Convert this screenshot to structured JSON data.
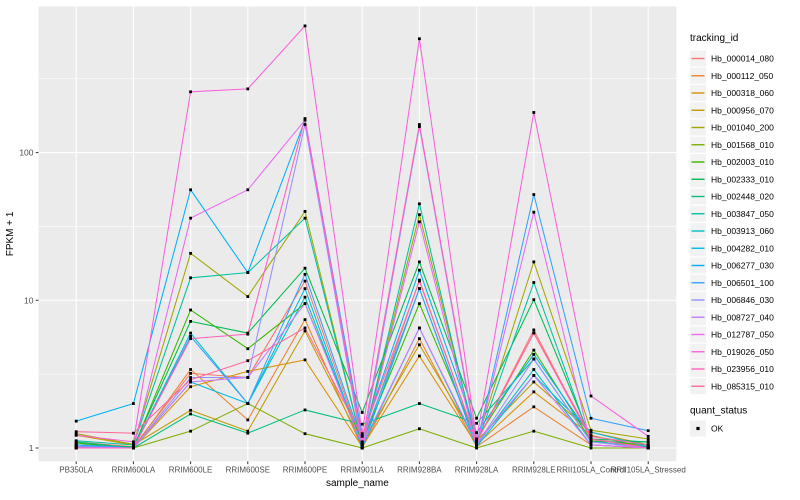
{
  "figure": {
    "background": "#ffffff",
    "panel_background": "#ebebeb",
    "grid_color": "#ffffff",
    "tick_label_color": "#4d4d4d",
    "axis_title_color": "#000000",
    "legend_key_fill": "#f2f2f2",
    "point_color": "#000000"
  },
  "chart_data": {
    "type": "line",
    "title": "",
    "xlabel": "sample_name",
    "ylabel": "FPKM + 1",
    "y_scale": "log10",
    "y_ticks": [
      1,
      10,
      100
    ],
    "y_minor": [
      3.162,
      31.62,
      316.2
    ],
    "ylim": [
      0.82,
      975
    ],
    "grid": true,
    "legend_position": "right",
    "legend_title": "tracking_id",
    "point_legend_title": "quant_status",
    "point_legend_label": "OK",
    "categories": [
      "PB350LA",
      "RRIM600LA",
      "RRIM600LE",
      "RRIM600SE",
      "RRIM600PE",
      "RRIM901LA",
      "RRIM928BA",
      "RRIM928LA",
      "RRIM928LE",
      "RRII105LA_Control",
      "RRII105LA_Stressed"
    ],
    "series": [
      {
        "name": "Hb_000014_080",
        "color": "#F8766D",
        "values": [
          1.1,
          1.02,
          3.2,
          3.0,
          13.5,
          1.05,
          13.7,
          1.1,
          6.3,
          1.15,
          1.02
        ]
      },
      {
        "name": "Hb_000112_050",
        "color": "#EA8331",
        "values": [
          1.02,
          1.0,
          3.4,
          1.55,
          7.4,
          1.0,
          5.5,
          1.02,
          1.9,
          1.05,
          1.0
        ]
      },
      {
        "name": "Hb_000318_060",
        "color": "#D89000",
        "values": [
          1.05,
          1.0,
          2.6,
          3.3,
          3.95,
          1.02,
          4.2,
          1.05,
          2.4,
          1.22,
          1.0
        ]
      },
      {
        "name": "Hb_000956_070",
        "color": "#C09B00",
        "values": [
          1.22,
          1.05,
          1.8,
          1.3,
          6.2,
          1.08,
          5.0,
          1.12,
          2.8,
          1.28,
          1.05
        ]
      },
      {
        "name": "Hb_001040_200",
        "color": "#A3A500",
        "values": [
          1.25,
          1.06,
          20.8,
          10.6,
          40,
          1.05,
          38,
          1.1,
          18.2,
          1.32,
          1.15
        ]
      },
      {
        "name": "Hb_001568_010",
        "color": "#7CAE00",
        "values": [
          1.0,
          1.0,
          1.3,
          2.0,
          1.25,
          1.0,
          1.35,
          1.0,
          1.3,
          1.0,
          1.0
        ]
      },
      {
        "name": "Hb_002003_010",
        "color": "#39B600",
        "values": [
          1.08,
          1.0,
          8.6,
          4.7,
          9.5,
          1.1,
          9.5,
          1.15,
          4.6,
          1.12,
          1.05
        ]
      },
      {
        "name": "Hb_002333_010",
        "color": "#00BB4E",
        "values": [
          1.05,
          1.02,
          7.2,
          6.0,
          16.5,
          1.74,
          18.2,
          1.59,
          10.1,
          1.15,
          1.1
        ]
      },
      {
        "name": "Hb_002448_020",
        "color": "#00BF7D",
        "values": [
          1.1,
          1.0,
          1.7,
          1.26,
          1.81,
          1.45,
          2.0,
          1.47,
          4.0,
          1.1,
          1.1
        ]
      },
      {
        "name": "Hb_003847_050",
        "color": "#00C1A3",
        "values": [
          1.12,
          1.05,
          14.2,
          15.4,
          36,
          1.05,
          45,
          1.05,
          13.2,
          1.1,
          1.02
        ]
      },
      {
        "name": "Hb_003913_060",
        "color": "#00BFC4",
        "values": [
          1.05,
          1.0,
          6.0,
          2.0,
          10.5,
          1.02,
          6.5,
          1.05,
          3.4,
          1.05,
          1.0
        ]
      },
      {
        "name": "Hb_004282_010",
        "color": "#00BAE0",
        "values": [
          1.03,
          1.0,
          2.8,
          2.0,
          12,
          1.0,
          12,
          1.02,
          3.1,
          1.28,
          1.02
        ]
      },
      {
        "name": "Hb_006277_030",
        "color": "#00B0F6",
        "values": [
          1.52,
          2.0,
          56,
          15.4,
          166,
          1.2,
          16,
          1.27,
          4.3,
          1.2,
          1.05
        ]
      },
      {
        "name": "Hb_006501_100",
        "color": "#35A2FF",
        "values": [
          1.05,
          1.0,
          5.7,
          2.0,
          15,
          1.1,
          12,
          1.05,
          52,
          1.59,
          1.31
        ]
      },
      {
        "name": "Hb_006846_030",
        "color": "#9590FF",
        "values": [
          1.0,
          1.0,
          3.0,
          3.0,
          155,
          1.0,
          150,
          1.05,
          4.0,
          1.1,
          1.0
        ]
      },
      {
        "name": "Hb_008727_040",
        "color": "#C77CFF",
        "values": [
          1.02,
          1.0,
          2.8,
          3.0,
          9.5,
          1.05,
          6.5,
          1.08,
          3.1,
          1.05,
          1.0
        ]
      },
      {
        "name": "Hb_012787_050",
        "color": "#E76BF3",
        "values": [
          1.0,
          1.0,
          36,
          56,
          166,
          1.02,
          34,
          1.02,
          39.5,
          1.05,
          1.0
        ]
      },
      {
        "name": "Hb_019026_050",
        "color": "#FA62DB",
        "values": [
          1.22,
          1.1,
          258,
          270,
          721,
          1.25,
          590,
          1.15,
          187,
          2.25,
          1.2
        ]
      },
      {
        "name": "Hb_023956_010",
        "color": "#FF62BC",
        "values": [
          1.0,
          1.0,
          5.5,
          5.9,
          170,
          1.1,
          155,
          1.1,
          6.0,
          1.15,
          1.0
        ]
      },
      {
        "name": "Hb_085315_010",
        "color": "#FF6A98",
        "values": [
          1.29,
          1.26,
          2.9,
          3.9,
          6.5,
          1.2,
          13.5,
          1.1,
          6.0,
          1.2,
          1.05
        ]
      }
    ]
  }
}
